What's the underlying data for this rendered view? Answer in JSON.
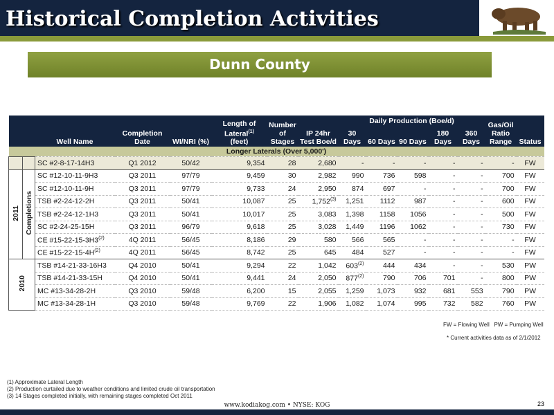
{
  "header": {
    "title": "Historical Completion Activities"
  },
  "subtitle": "Dunn County",
  "table": {
    "columns": [
      "Well Name",
      "Completion Date",
      "WI/NRI (%)",
      {
        "text": "Length of Lateral",
        "note": "(1)",
        "sub": "(feet)"
      },
      "Number of Stages",
      "IP 24hr Test Boe/d"
    ],
    "daily_production": {
      "label": "Daily Production (Boe/d)",
      "columns": [
        "30 Days",
        "60 Days",
        "90 Days",
        "180 Days",
        "360 Days"
      ]
    },
    "end_columns": [
      "Gas/Oil Ratio Range",
      "Status"
    ],
    "section": "Longer Laterals (Over 5,000')",
    "groups": [
      {
        "rows": [
          [
            "SC #2-8-17-14H3",
            "Q1 2012",
            "50/42",
            "9,354",
            "28",
            "2,680",
            "-",
            "-",
            "-",
            "-",
            "-",
            "-",
            "FW"
          ]
        ]
      },
      {
        "year": "2011",
        "label": "Completions",
        "rows": [
          [
            "SC #12-10-11-9H3",
            "Q3 2011",
            "97/79",
            "9,459",
            "30",
            "2,982",
            "990",
            "736",
            "598",
            "-",
            "-",
            "700",
            "FW"
          ],
          [
            "SC #12-10-11-9H",
            "Q3 2011",
            "97/79",
            "9,733",
            "24",
            "2,950",
            "874",
            "697",
            "-",
            "-",
            "-",
            "700",
            "FW"
          ],
          [
            "TSB #2-24-12-2H",
            "Q3 2011",
            "50/41",
            "10,087",
            "25",
            {
              "text": "1,752",
              "note": "(3)"
            },
            "1,251",
            "1112",
            "987",
            "-",
            "-",
            "600",
            "FW"
          ],
          [
            "TSB #2-24-12-1H3",
            "Q3 2011",
            "50/41",
            "10,017",
            "25",
            "3,083",
            "1,398",
            "1158",
            "1056",
            "-",
            "-",
            "500",
            "FW"
          ],
          [
            "SC #2-24-25-15H",
            "Q3 2011",
            "96/79",
            "9,618",
            "25",
            "3,028",
            "1,449",
            "1196",
            "1062",
            "-",
            "-",
            "730",
            "FW"
          ],
          [
            {
              "text": "CE #15-22-15-3H3",
              "note": "(2)"
            },
            "4Q 2011",
            "56/45",
            "8,186",
            "29",
            "580",
            "566",
            "565",
            "-",
            "-",
            "-",
            "-",
            "FW"
          ],
          [
            {
              "text": "CE #15-22-15-4H",
              "note": "(2)"
            },
            "4Q 2011",
            "56/45",
            "8,742",
            "25",
            "645",
            "484",
            "527",
            "-",
            "-",
            "-",
            "-",
            "FW"
          ]
        ]
      },
      {
        "year": "2010",
        "rows": [
          [
            "TSB #14-21-33-16H3",
            "Q4 2010",
            "50/41",
            "9,294",
            "22",
            "1,042",
            {
              "text": "603",
              "note": "(2)"
            },
            "444",
            "434",
            "-",
            "-",
            "530",
            "PW"
          ],
          [
            "TSB #14-21-33-15H",
            "Q4 2010",
            "50/41",
            "9,441",
            "24",
            "2,050",
            {
              "text": "877",
              "note": "(2)"
            },
            "790",
            "706",
            "701",
            "-",
            "800",
            "PW"
          ],
          [
            "MC #13-34-28-2H",
            "Q3 2010",
            "59/48",
            "6,200",
            "15",
            "2,055",
            "1,259",
            "1,073",
            "932",
            "681",
            "553",
            "790",
            "PW"
          ],
          [
            "MC #13-34-28-1H",
            "Q3 2010",
            "59/48",
            "9,769",
            "22",
            "1,906",
            "1,082",
            "1,074",
            "995",
            "732",
            "582",
            "760",
            "PW"
          ]
        ]
      }
    ]
  },
  "legend": [
    "FW = Flowing Well",
    "PW = Pumping Well"
  ],
  "asof": "* Current activities data as of 2/1/2012",
  "footnotes": [
    "(1)  Approximate Lateral Length",
    "(2)  Production curtailed due to weather conditions and limited crude oil transportation",
    "(3)  14 Stages completed initially, with remaining stages completed Oct 2011"
  ],
  "footer": "www.kodiakog.com • NYSE: KOG",
  "page": "23"
}
